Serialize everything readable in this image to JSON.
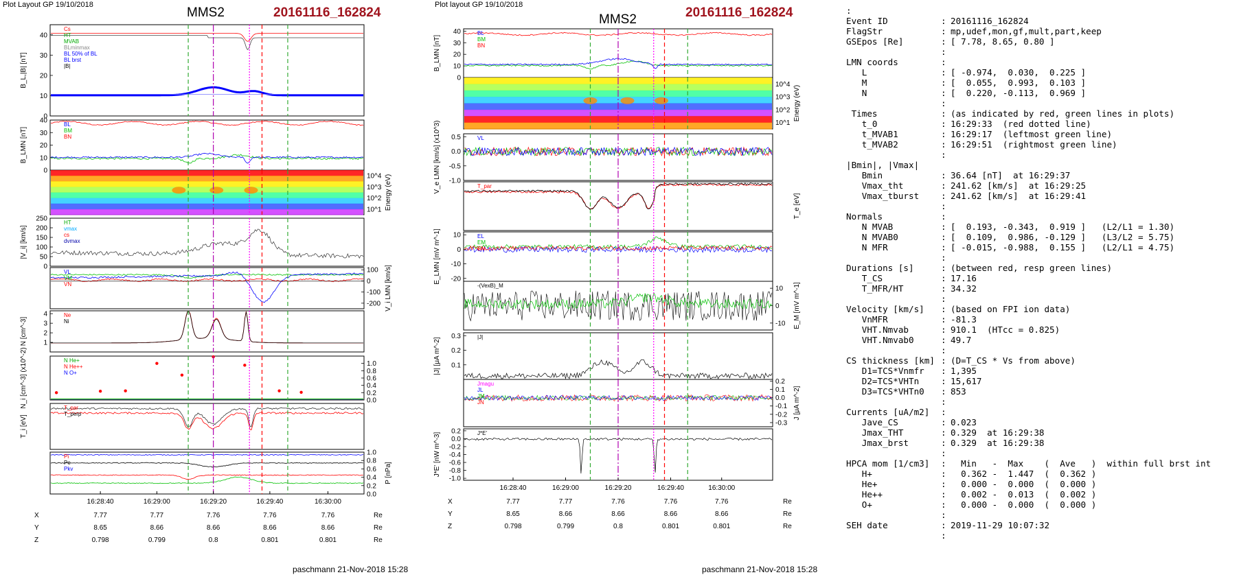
{
  "header": {
    "left_top": "Plot Layout GP 19/10/2018",
    "mid_top": "Plot layout GP 19/10/2018",
    "spacecraft": "MMS2",
    "event": "20161116_162824"
  },
  "footer": {
    "left": "paschmann 21-Nov-2018 15:28",
    "mid": "paschmann 21-Nov-2018 15:28"
  },
  "colors": {
    "event_red": "#a0141e",
    "bl": "#0000ff",
    "bm": "#00c000",
    "bn": "#ff0000",
    "marker_green": "#33aa33",
    "marker_purple": "#b000b0",
    "marker_magenta": "#ff00ff"
  },
  "chart_data": [
    {
      "type": "line",
      "title": "MMS2",
      "panels": [
        {
          "ylabel": "B_L,|B| [nT]",
          "ylim": [
            0,
            45
          ],
          "ticks": [
            "0",
            "10",
            "20",
            "30",
            "40"
          ],
          "legend": [
            "Cs",
            "HT",
            "MVAB",
            "BLminmax",
            "BL 50% of BL",
            "BL brst",
            "|B|"
          ]
        },
        {
          "ylabel": "B_LMN [nT]",
          "ylim": [
            0,
            40
          ],
          "ticks": [
            "0",
            "10",
            "20",
            "30",
            "40"
          ],
          "legend": [
            "BL",
            "BM",
            "BN"
          ]
        },
        {
          "ylabel": "Energy (eV)",
          "ticks": [
            "10^4",
            "10^3",
            "10^2",
            "10^1"
          ]
        },
        {
          "ylabel": "|V_i| [km/s]",
          "ylim": [
            0,
            250
          ],
          "ticks": [
            "0",
            "50",
            "100",
            "150",
            "200",
            "250"
          ],
          "legend": [
            "HT",
            "vmax",
            "cs",
            "dvmax"
          ]
        },
        {
          "ylabel": "V_i LMN [km/s]",
          "ylim": [
            -250,
            120
          ],
          "ticks": [
            "100",
            "0",
            "-100",
            "-200"
          ],
          "legend": [
            "VL",
            "VM",
            "VN"
          ]
        },
        {
          "ylabel": "N [cm^-3]",
          "ylim": [
            0,
            4.3
          ],
          "ticks": [
            "1",
            "2",
            "3",
            "4"
          ],
          "legend": [
            "Ne",
            "Ni"
          ]
        },
        {
          "ylabel": "N_i [cm^-3] (x10^-2)",
          "ylim": [
            0,
            1.2
          ],
          "ticks": [
            "1.0",
            "0.8",
            "0.6",
            "0.4",
            "0.2",
            "0.0"
          ],
          "legend": [
            "N He+",
            "N He++",
            "N O+"
          ]
        },
        {
          "ylabel": "T_i [eV]",
          "ticks": [
            "10^3"
          ],
          "legend": [
            "T_par",
            "T_perp"
          ]
        },
        {
          "ylabel": "P [nPa]",
          "ylim": [
            0,
            1.0
          ],
          "ticks": [
            "1.0",
            "0.8",
            "0.6",
            "0.4",
            "0.2",
            "0.0"
          ],
          "legend": [
            "Pi",
            "Pe",
            "Pkv"
          ]
        }
      ],
      "xticks": [
        "16:28:40",
        "16:29:00",
        "16:29:20",
        "16:29:40",
        "16:30:00"
      ]
    },
    {
      "type": "line",
      "title": "MMS2",
      "panels": [
        {
          "ylabel": "B_LMN [nT]",
          "ylim": [
            0,
            42
          ],
          "ticks": [
            "0",
            "10",
            "20",
            "30",
            "40"
          ],
          "legend": [
            "BL",
            "BM",
            "BN"
          ]
        },
        {
          "ylabel": "Energy (eV)",
          "ticks": [
            "10^4",
            "10^3",
            "10^2",
            "10^1"
          ]
        },
        {
          "ylabel": "V_e LMN [km/s] (x10^3)",
          "ylim": [
            -1.0,
            0.6
          ],
          "ticks": [
            "0.5",
            "0.0",
            "-0.5",
            "-1.0"
          ],
          "legend": [
            "VL"
          ]
        },
        {
          "ylabel": "T_e [eV]",
          "ticks": [
            "10^2"
          ],
          "legend": [
            "T_par"
          ]
        },
        {
          "ylabel": "E_LMN [mV m^-1]",
          "ylim": [
            -22,
            12
          ],
          "ticks": [
            "10",
            "0",
            "-10",
            "-20"
          ],
          "legend": [
            "EL",
            "EM",
            "EN"
          ]
        },
        {
          "ylabel": "E_M [mV m^-1]",
          "ylim": [
            -14,
            14
          ],
          "ticks": [
            "10",
            "0",
            "-10"
          ],
          "legend": [
            "-(VexB)_M"
          ]
        },
        {
          "ylabel": "|J| [μA m^-2]",
          "ylim": [
            0,
            0.32
          ],
          "ticks": [
            "0.3",
            "0.2",
            "0.1"
          ],
          "legend": [
            "|J|"
          ]
        },
        {
          "ylabel": "J [μA m^-2]",
          "ylim": [
            -0.35,
            0.22
          ],
          "ticks": [
            "0.2",
            "0.1",
            "0.0",
            "-0.1",
            "-0.2",
            "-0.3"
          ],
          "legend": [
            "Jmagu",
            "JL",
            "JM",
            "JN"
          ]
        },
        {
          "ylabel": "J*E' [nW m^-3]",
          "ylim": [
            -1.05,
            0.25
          ],
          "ticks": [
            "0.2",
            "0.0",
            "-0.2",
            "-0.4",
            "-0.6",
            "-0.8",
            "-1.0"
          ],
          "legend": [
            "J*E'"
          ]
        }
      ],
      "xticks": [
        "16:28:40",
        "16:29:00",
        "16:29:20",
        "16:29:40",
        "16:30:00"
      ]
    }
  ],
  "ephemeris": {
    "labels": [
      "X",
      "Y",
      "Z"
    ],
    "unit": "Re",
    "rows": [
      [
        "7.77",
        "7.77",
        "7.76",
        "7.76",
        "7.76"
      ],
      [
        "8.65",
        "8.66",
        "8.66",
        "8.66",
        "8.66"
      ],
      [
        "0.798",
        "0.799",
        "0.8",
        "0.801",
        "0.801"
      ]
    ]
  },
  "summary": [
    [
      ":",
      "",
      ""
    ],
    [
      "Event ID",
      ":",
      "20161116_162824"
    ],
    [
      "FlagStr",
      ":",
      "mp,udef,mon,gf,mult,part,keep"
    ],
    [
      "GSEpos [Re]",
      ":",
      "[ 7.78, 8.65, 0.80 ]"
    ],
    [
      "",
      ":",
      ""
    ],
    [
      "LMN coords",
      ":",
      ""
    ],
    [
      "   L",
      ":",
      "[ -0.974,  0.030,  0.225 ]"
    ],
    [
      "   M",
      ":",
      "[  0.055,  0.993,  0.103 ]"
    ],
    [
      "   N",
      ":",
      "[  0.220, -0.113,  0.969 ]"
    ],
    [
      "",
      ":",
      ""
    ],
    [
      " Times",
      ":",
      "(as indicated by red, green lines in plots)"
    ],
    [
      "   t_0",
      ":",
      "16:29:33  (red dotted line)"
    ],
    [
      "   t_MVAB1",
      ":",
      "16:29:17  (leftmost green line)"
    ],
    [
      "   t_MVAB2",
      ":",
      "16:29:51  (rightmost green line)"
    ],
    [
      "",
      ":",
      ""
    ],
    [
      "|Bmin|, |Vmax|",
      "",
      ""
    ],
    [
      "   Bmin",
      ":",
      "36.64 [nT]  at 16:29:37"
    ],
    [
      "   Vmax_tht",
      ":",
      "241.62 [km/s]  at 16:29:25"
    ],
    [
      "   Vmax_tburst",
      ":",
      "241.62 [km/s]  at 16:29:41"
    ],
    [
      "",
      ":",
      ""
    ],
    [
      "Normals",
      ":",
      ""
    ],
    [
      "   N MVAB",
      ":",
      "[  0.193, -0.343,  0.919 ]   (L2/L1 = 1.30)"
    ],
    [
      "   N MVAB0",
      ":",
      "[  0.109,  0.986, -0.129 ]   (L3/L2 = 5.75)"
    ],
    [
      "   N MFR",
      ":",
      "[ -0.015, -0.988,  0.155 ]   (L2/L1 = 4.75)"
    ],
    [
      "",
      ":",
      ""
    ],
    [
      "Durations [s]",
      ":",
      "(between red, resp green lines)"
    ],
    [
      "   T_CS",
      ":",
      "17.16"
    ],
    [
      "   T_MFR/HT",
      ":",
      "34.32"
    ],
    [
      "",
      ":",
      ""
    ],
    [
      "Velocity [km/s]",
      ":",
      "(based on FPI ion data)"
    ],
    [
      "   VnMFR",
      ":",
      "-81.3"
    ],
    [
      "   VHT.Nmvab",
      ":",
      "910.1  (HTcc = 0.825)"
    ],
    [
      "   VHT.Nmvab0",
      ":",
      "49.7"
    ],
    [
      "",
      ":",
      ""
    ],
    [
      "CS thickness [km]",
      ":",
      "(D=T_CS * Vs from above)"
    ],
    [
      "   D1=TCS*Vnmfr",
      ":",
      "1,395"
    ],
    [
      "   D2=TCS*VHTn",
      ":",
      "15,617"
    ],
    [
      "   D3=TCS*VHTn0",
      ":",
      "853"
    ],
    [
      "",
      ":",
      ""
    ],
    [
      "Currents [uA/m2]",
      ":",
      ""
    ],
    [
      "   Jave_CS",
      ":",
      "0.023"
    ],
    [
      "   Jmax_THT",
      ":",
      "0.329  at 16:29:38"
    ],
    [
      "   Jmax_brst",
      ":",
      "0.329  at 16:29:38"
    ],
    [
      "",
      ":",
      ""
    ],
    [
      "HPCA mom [1/cm3]",
      ":",
      "  Min   -  Max    (  Ave   )  within full brst int"
    ],
    [
      "   H+",
      ":",
      "  0.362 -  1.447  (  0.362 )"
    ],
    [
      "   He+",
      ":",
      "  0.000 -  0.000  (  0.000 )"
    ],
    [
      "   He++",
      ":",
      "  0.002 -  0.013  (  0.002 )"
    ],
    [
      "   O+",
      ":",
      "  0.000 -  0.000  (  0.000 )"
    ],
    [
      "",
      ":",
      ""
    ],
    [
      "SEH date",
      ":",
      "2019-11-29 10:07:32"
    ],
    [
      "",
      ":",
      ""
    ]
  ]
}
